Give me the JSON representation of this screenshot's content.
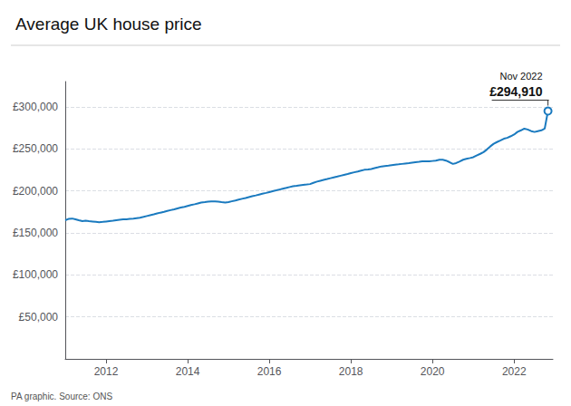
{
  "chart_data": {
    "type": "line",
    "title": "Average UK house price",
    "source": "PA graphic. Source: ONS",
    "annotation": {
      "date": "Nov 2022",
      "value_label": "£294,910"
    },
    "color": "#1a7abf",
    "grid": true,
    "xlim": [
      2011.0,
      2022.95
    ],
    "ylim": [
      0,
      330000
    ],
    "xticks": [
      2012,
      2014,
      2016,
      2018,
      2020,
      2022
    ],
    "yticks": [
      {
        "value": 50000,
        "label": "£50,000"
      },
      {
        "value": 100000,
        "label": "£100,000"
      },
      {
        "value": 150000,
        "label": "£150,000"
      },
      {
        "value": 200000,
        "label": "£200,000"
      },
      {
        "value": 250000,
        "label": "£250,000"
      },
      {
        "value": 300000,
        "label": "£300,000"
      }
    ],
    "x": [
      2011.0,
      2011.08,
      2011.17,
      2011.25,
      2011.33,
      2011.42,
      2011.5,
      2011.58,
      2011.67,
      2011.75,
      2011.83,
      2011.92,
      2012.0,
      2012.08,
      2012.17,
      2012.25,
      2012.33,
      2012.42,
      2012.5,
      2012.58,
      2012.67,
      2012.75,
      2012.83,
      2012.92,
      2013.0,
      2013.08,
      2013.17,
      2013.25,
      2013.33,
      2013.42,
      2013.5,
      2013.58,
      2013.67,
      2013.75,
      2013.83,
      2013.92,
      2014.0,
      2014.08,
      2014.17,
      2014.25,
      2014.33,
      2014.42,
      2014.5,
      2014.58,
      2014.67,
      2014.75,
      2014.83,
      2014.92,
      2015.0,
      2015.08,
      2015.17,
      2015.25,
      2015.33,
      2015.42,
      2015.5,
      2015.58,
      2015.67,
      2015.75,
      2015.83,
      2015.92,
      2016.0,
      2016.08,
      2016.17,
      2016.25,
      2016.33,
      2016.42,
      2016.5,
      2016.58,
      2016.67,
      2016.75,
      2016.83,
      2016.92,
      2017.0,
      2017.08,
      2017.17,
      2017.25,
      2017.33,
      2017.42,
      2017.5,
      2017.58,
      2017.67,
      2017.75,
      2017.83,
      2017.92,
      2018.0,
      2018.08,
      2018.17,
      2018.25,
      2018.33,
      2018.42,
      2018.5,
      2018.58,
      2018.67,
      2018.75,
      2018.83,
      2018.92,
      2019.0,
      2019.08,
      2019.17,
      2019.25,
      2019.33,
      2019.42,
      2019.5,
      2019.58,
      2019.67,
      2019.75,
      2019.83,
      2019.92,
      2020.0,
      2020.08,
      2020.17,
      2020.25,
      2020.33,
      2020.42,
      2020.5,
      2020.58,
      2020.67,
      2020.75,
      2020.83,
      2020.92,
      2021.0,
      2021.08,
      2021.17,
      2021.25,
      2021.33,
      2021.42,
      2021.5,
      2021.58,
      2021.67,
      2021.75,
      2021.83,
      2021.92,
      2022.0,
      2022.08,
      2022.17,
      2022.25,
      2022.33,
      2022.42,
      2022.5,
      2022.58,
      2022.67,
      2022.75,
      2022.83
    ],
    "values": [
      165000,
      166500,
      167000,
      166000,
      165000,
      164000,
      164500,
      164000,
      163500,
      163000,
      162500,
      163000,
      163500,
      164000,
      164500,
      165000,
      165500,
      166000,
      166000,
      166500,
      167000,
      167500,
      168000,
      169000,
      170000,
      171000,
      172000,
      173000,
      174000,
      175000,
      176000,
      177000,
      178000,
      179000,
      180000,
      181000,
      182000,
      183000,
      184000,
      185000,
      186000,
      186500,
      187000,
      187500,
      187500,
      187000,
      186500,
      186000,
      186500,
      187500,
      188500,
      189500,
      190500,
      191500,
      192500,
      193500,
      194500,
      195500,
      196500,
      197500,
      198500,
      199500,
      200500,
      201500,
      202500,
      203500,
      204500,
      205500,
      206000,
      206500,
      207000,
      207500,
      208000,
      209500,
      211000,
      212000,
      213000,
      214000,
      215000,
      216000,
      217000,
      218000,
      219000,
      220000,
      221000,
      222000,
      223000,
      224000,
      225000,
      225500,
      226000,
      227000,
      228000,
      229000,
      229500,
      230000,
      230500,
      231000,
      231500,
      232000,
      232500,
      233000,
      233500,
      234000,
      234500,
      235000,
      235000,
      235000,
      235500,
      236000,
      237000,
      237000,
      236000,
      234000,
      232000,
      233000,
      235000,
      237000,
      238000,
      239000,
      240000,
      242000,
      244000,
      246000,
      249000,
      253000,
      256000,
      258000,
      260000,
      262000,
      263000,
      265000,
      267000,
      270000,
      272000,
      274000,
      273000,
      271000,
      270000,
      271000,
      272000,
      274000,
      294910
    ]
  }
}
